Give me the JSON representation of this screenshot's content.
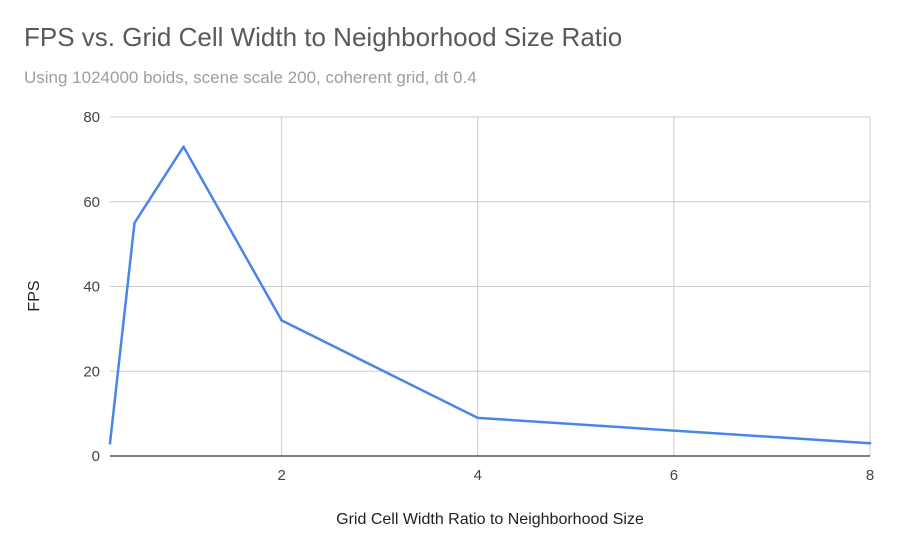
{
  "chart_data": {
    "type": "line",
    "title": "FPS vs. Grid Cell Width to Neighborhood Size Ratio",
    "subtitle": "Using 1024000 boids, scene scale 200, coherent grid, dt 0.4",
    "xlabel": "Grid Cell Width Ratio to Neighborhood Size",
    "ylabel": "FPS",
    "xlim": [
      0.25,
      8
    ],
    "ylim": [
      0,
      80
    ],
    "xticks": [
      2,
      4,
      6,
      8
    ],
    "yticks": [
      0,
      20,
      40,
      60,
      80
    ],
    "grid": true,
    "legend": "none",
    "series": [
      {
        "color": "#4a86e8",
        "x": [
          0.25,
          0.5,
          1,
          2,
          4,
          8
        ],
        "y": [
          3,
          55,
          73,
          32,
          9,
          3
        ]
      }
    ]
  }
}
